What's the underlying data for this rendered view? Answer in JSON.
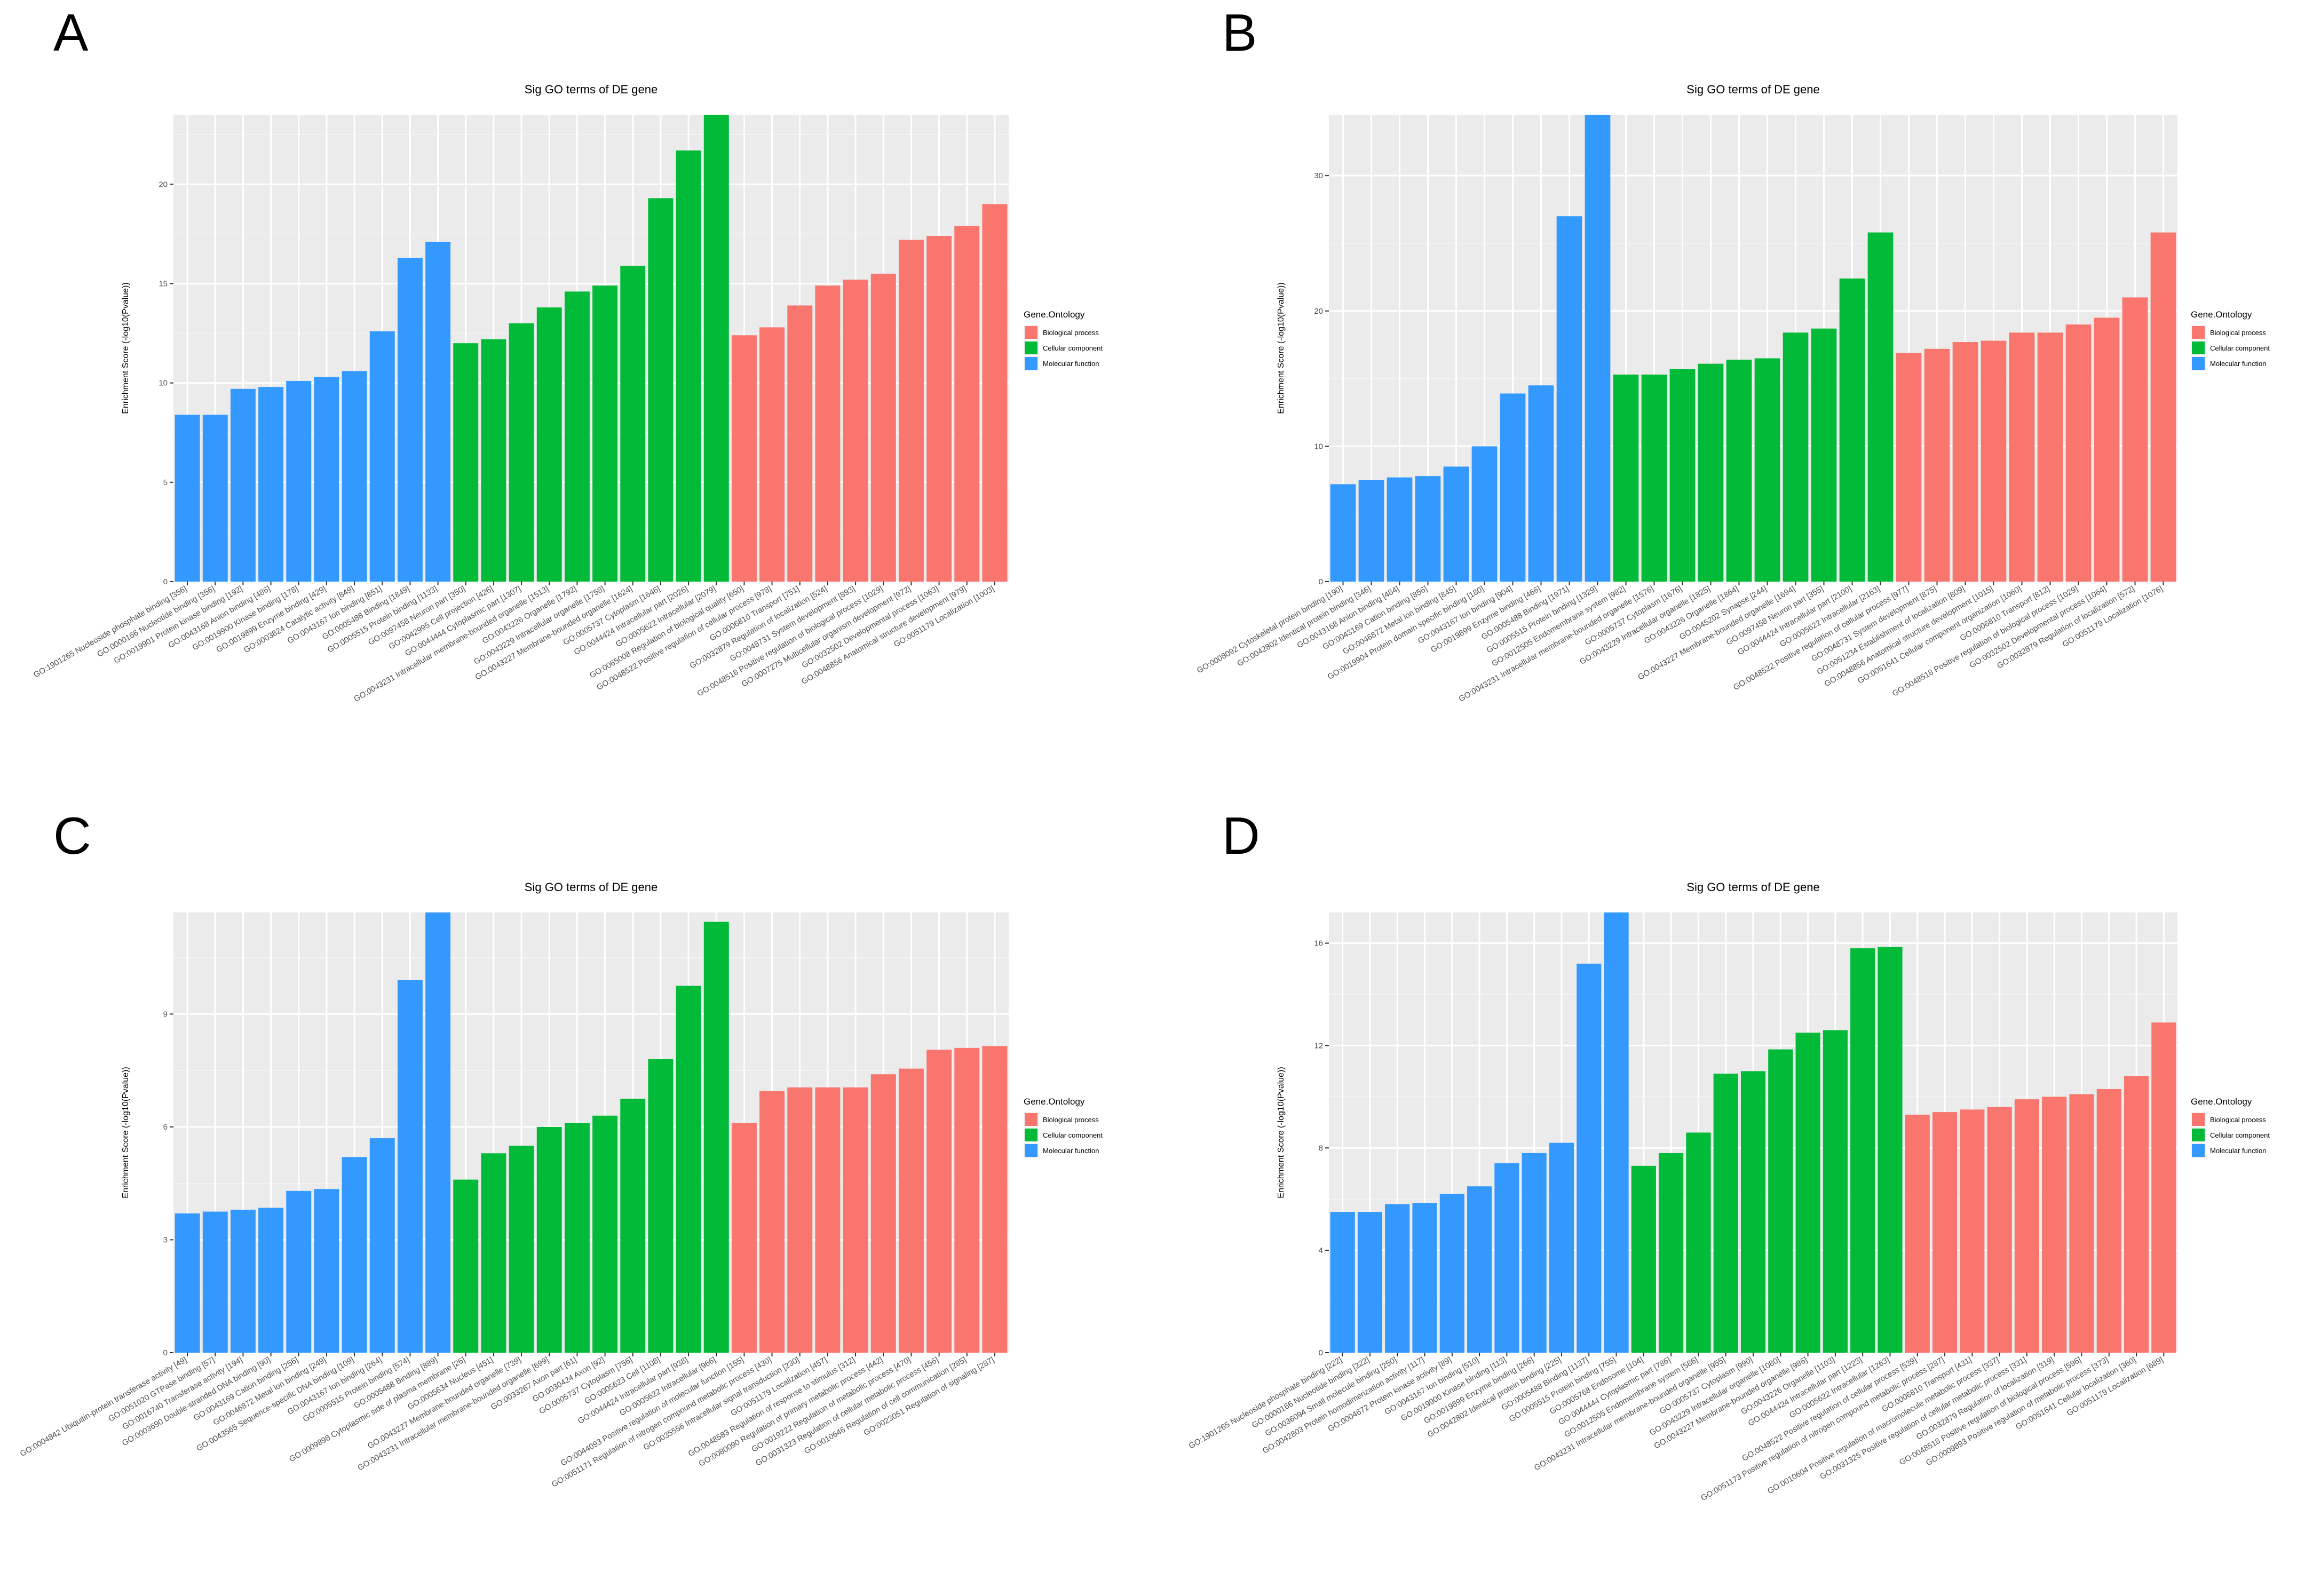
{
  "colors": {
    "biological_process": "#F8766D",
    "cellular_component": "#00BA38",
    "molecular_function": "#3399FF"
  },
  "chart_data": [
    {
      "panel": "A",
      "type": "bar",
      "title": "Sig GO terms of DE gene",
      "ylabel": "Enrichment Score (-log10(Pvalue))",
      "xlabel": "",
      "ylim": [
        0,
        23.5
      ],
      "yticks": [
        0,
        5,
        10,
        15,
        20
      ],
      "legend": {
        "title": "Gene.Ontology",
        "position": "right",
        "entries": [
          "Biological process",
          "Cellular component",
          "Molecular function"
        ]
      },
      "categories": [
        "GO:1901265 Nucleoside phosphate binding [356]",
        "GO:0000166 Nucleotide binding [356]",
        "GO:0019901 Protein kinase binding [192]",
        "GO:0043168 Anion binding [486]",
        "GO:0019900 Kinase binding [178]",
        "GO:0019899 Enzyme binding [429]",
        "GO:0003824 Catalytic activity [849]",
        "GO:0043167 Ion binding [851]",
        "GO:0005488 Binding [1849]",
        "GO:0005515 Protein binding [1133]",
        "GO:0097458 Neuron part [350]",
        "GO:0042995 Cell projection [426]",
        "GO:0044444 Cytoplasmic part [1307]",
        "GO:0043231 Intracellular membrane-bounded organelle [1513]",
        "GO:0043226 Organelle [1792]",
        "GO:0043229 Intracellular organelle [1758]",
        "GO:0043227 Membrane-bounded organelle [1624]",
        "GO:0005737 Cytoplasm [1646]",
        "GO:0044424 Intracellular part [2026]",
        "GO:0005622 Intracellular [2079]",
        "GO:0065008 Regulation of biological quality [650]",
        "GO:0048522 Positive regulation of cellular process [978]",
        "GO:0006810 Transport [751]",
        "GO:0032879 Regulation of localization [524]",
        "GO:0048731 System development [893]",
        "GO:0048518 Positive regulation of biological process [1029]",
        "GO:0007275 Multicellular organism development [972]",
        "GO:0032502 Developmental process [1063]",
        "GO:0048856 Anatomical structure development [979]",
        "GO:0051179 Localization [1003]"
      ],
      "values": [
        8.4,
        8.4,
        9.7,
        9.8,
        10.1,
        10.3,
        10.6,
        12.6,
        16.3,
        17.1,
        12.0,
        12.2,
        13.0,
        13.8,
        14.6,
        14.9,
        15.9,
        19.3,
        21.7,
        23.5,
        12.4,
        12.8,
        13.9,
        14.9,
        15.2,
        15.5,
        17.2,
        17.4,
        17.9,
        19.0
      ],
      "groups": [
        "MF",
        "MF",
        "MF",
        "MF",
        "MF",
        "MF",
        "MF",
        "MF",
        "MF",
        "MF",
        "CC",
        "CC",
        "CC",
        "CC",
        "CC",
        "CC",
        "CC",
        "CC",
        "CC",
        "CC",
        "BP",
        "BP",
        "BP",
        "BP",
        "BP",
        "BP",
        "BP",
        "BP",
        "BP",
        "BP"
      ]
    },
    {
      "panel": "B",
      "type": "bar",
      "title": "Sig GO terms of DE gene",
      "ylabel": "Enrichment Score (-log10(Pvalue))",
      "xlabel": "",
      "ylim": [
        0,
        34.5
      ],
      "yticks": [
        0,
        10,
        20,
        30
      ],
      "legend": {
        "title": "Gene.Ontology",
        "position": "right",
        "entries": [
          "Biological process",
          "Cellular component",
          "Molecular function"
        ]
      },
      "categories": [
        "GO:0008092 Cytoskeletal protein binding [190]",
        "GO:0042802 Identical protein binding [346]",
        "GO:0043168 Anion binding [484]",
        "GO:0043169 Cation binding [856]",
        "GO:0046872 Metal ion binding [845]",
        "GO:0019904 Protein domain specific binding [180]",
        "GO:0043167 Ion binding [904]",
        "GO:0019899 Enzyme binding [466]",
        "GO:0005488 Binding [1971]",
        "GO:0005515 Protein binding [1329]",
        "GO:0012505 Endomembrane system [982]",
        "GO:0043231 Intracellular membrane-bounded organelle [1576]",
        "GO:0005737 Cytoplasm [1676]",
        "GO:0043229 Intracellular organelle [1825]",
        "GO:0043226 Organelle [1864]",
        "GO:0045202 Synapse [244]",
        "GO:0043227 Membrane-bounded organelle [1694]",
        "GO:0097458 Neuron part [355]",
        "GO:0044424 Intracellular part [2100]",
        "GO:0005622 Intracellular [2163]",
        "GO:0048522 Positive regulation of cellular process [977]",
        "GO:0048731 System development [875]",
        "GO:0051234 Establishment of localization [809]",
        "GO:0048856 Anatomical structure development [1015]",
        "GO:0051641 Cellular component organization [1060]",
        "GO:0006810 Transport [812]",
        "GO:0048518 Positive regulation of biological process [1029]",
        "GO:0032502 Developmental process [1064]",
        "GO:0032879 Regulation of localization [572]",
        "GO:0051179 Localization [1076]"
      ],
      "values": [
        7.2,
        7.5,
        7.7,
        7.8,
        8.5,
        10.0,
        13.9,
        14.5,
        27.0,
        34.8,
        15.3,
        15.3,
        15.7,
        16.1,
        16.4,
        16.5,
        18.4,
        18.7,
        22.4,
        25.8,
        16.9,
        17.2,
        17.7,
        17.8,
        18.4,
        18.4,
        19.0,
        19.5,
        21.0,
        25.8
      ],
      "groups": [
        "MF",
        "MF",
        "MF",
        "MF",
        "MF",
        "MF",
        "MF",
        "MF",
        "MF",
        "MF",
        "CC",
        "CC",
        "CC",
        "CC",
        "CC",
        "CC",
        "CC",
        "CC",
        "CC",
        "CC",
        "BP",
        "BP",
        "BP",
        "BP",
        "BP",
        "BP",
        "BP",
        "BP",
        "BP",
        "BP"
      ]
    },
    {
      "panel": "C",
      "type": "bar",
      "title": "Sig GO terms of DE gene",
      "ylabel": "Enrichment Score (-log10(Pvalue))",
      "xlabel": "",
      "ylim": [
        0,
        11.7
      ],
      "yticks": [
        0,
        3,
        6,
        9
      ],
      "legend": {
        "title": "Gene.Ontology",
        "position": "right",
        "entries": [
          "Biological process",
          "Cellular component",
          "Molecular function"
        ]
      },
      "categories": [
        "GO:0004842 Ubiquitin-protein transferase activity [49]",
        "GO:0051020 GTPase binding [57]",
        "GO:0016740 Transferase activity [194]",
        "GO:0003690 Double-stranded DNA binding [90]",
        "GO:0043169 Cation binding [256]",
        "GO:0046872 Metal ion binding [249]",
        "GO:0043565 Sequence-specific DNA binding [109]",
        "GO:0043167 Ion binding [264]",
        "GO:0005515 Protein binding [574]",
        "GO:0005488 Binding [889]",
        "GO:0009898 Cytoplasmic side of plasma membrane [26]",
        "GO:0005634 Nucleus [451]",
        "GO:0043227 Membrane-bounded organelle [739]",
        "GO:0043231 Intracellular membrane-bounded organelle [699]",
        "GO:0033267 Axon part [61]",
        "GO:0030424 Axon [92]",
        "GO:0005737 Cytoplasm [756]",
        "GO:0005623 Cell [1108]",
        "GO:0044424 Intracellular part [938]",
        "GO:0005622 Intracellular [966]",
        "GO:0044093 Positive regulation of molecular function [155]",
        "GO:0051171 Regulation of nitrogen compound metabolic process [430]",
        "GO:0035556 Intracellular signal transduction [230]",
        "GO:0051179 Localization [457]",
        "GO:0048583 Regulation of response to stimulus [312]",
        "GO:0080090 Regulation of primary metabolic process [442]",
        "GO:0019222 Regulation of metabolic process [470]",
        "GO:0031323 Regulation of cellular metabolic process [456]",
        "GO:0010646 Regulation of cell communication [285]",
        "GO:0023051 Regulation of signaling [287]"
      ],
      "values": [
        3.7,
        3.75,
        3.8,
        3.85,
        4.3,
        4.35,
        5.2,
        5.7,
        9.9,
        11.7,
        4.6,
        5.3,
        5.5,
        6.0,
        6.1,
        6.3,
        6.75,
        7.8,
        9.75,
        11.45,
        6.1,
        6.95,
        7.05,
        7.05,
        7.05,
        7.4,
        7.55,
        8.05,
        8.1,
        8.15
      ],
      "groups": [
        "MF",
        "MF",
        "MF",
        "MF",
        "MF",
        "MF",
        "MF",
        "MF",
        "MF",
        "MF",
        "CC",
        "CC",
        "CC",
        "CC",
        "CC",
        "CC",
        "CC",
        "CC",
        "CC",
        "CC",
        "BP",
        "BP",
        "BP",
        "BP",
        "BP",
        "BP",
        "BP",
        "BP",
        "BP",
        "BP"
      ]
    },
    {
      "panel": "D",
      "type": "bar",
      "title": "Sig GO terms of DE gene",
      "ylabel": "Enrichment Score (-log10(Pvalue))",
      "xlabel": "",
      "ylim": [
        0,
        17.2
      ],
      "yticks": [
        0,
        4,
        8,
        12,
        16
      ],
      "legend": {
        "title": "Gene.Ontology",
        "position": "right",
        "entries": [
          "Biological process",
          "Cellular component",
          "Molecular function"
        ]
      },
      "categories": [
        "GO:1901265 Nucleoside phosphate binding [222]",
        "GO:0000166 Nucleotide binding [222]",
        "GO:0036094 Small molecule binding [250]",
        "GO:0042803 Protein homodimerization activity [117]",
        "GO:0004672 Protein kinase activity [89]",
        "GO:0043167 Ion binding [510]",
        "GO:0019900 Kinase binding [113]",
        "GO:0019899 Enzyme binding [266]",
        "GO:0042802 Identical protein binding [225]",
        "GO:0005488 Binding [1137]",
        "GO:0005515 Protein binding [755]",
        "GO:0005768 Endosome [104]",
        "GO:0044444 Cytoplasmic part [786]",
        "GO:0012505 Endomembrane system [586]",
        "GO:0043231 Intracellular membrane-bounded organelle [955]",
        "GO:0005737 Cytoplasm [990]",
        "GO:0043229 Intracellular organelle [1080]",
        "GO:0043227 Membrane-bounded organelle [986]",
        "GO:0043226 Organelle [1103]",
        "GO:0044424 Intracellular part [1223]",
        "GO:0005622 Intracellular [1263]",
        "GO:0048522 Positive regulation of cellular process [539]",
        "GO:0051173 Positive regulation of nitrogen compound metabolic process [287]",
        "GO:0006810 Transport [431]",
        "GO:0010604 Positive regulation of macromolecule metabolic process [337]",
        "GO:0031325 Positive regulation of cellular metabolic process [331]",
        "GO:0032879 Regulation of localization [319]",
        "GO:0048518 Positive regulation of biological process [596]",
        "GO:0009893 Positive regulation of metabolic process [373]",
        "GO:0051641 Cellular localization [360]",
        "GO:0051179 Localization [689]"
      ],
      "values": [
        5.5,
        5.5,
        5.8,
        5.85,
        6.2,
        6.5,
        7.4,
        7.8,
        8.2,
        15.2,
        17.3,
        7.3,
        7.8,
        8.6,
        10.9,
        11.0,
        11.85,
        12.5,
        12.6,
        15.8,
        15.85,
        9.3,
        9.4,
        9.5,
        9.6,
        9.9,
        10.0,
        10.1,
        10.3,
        10.8,
        12.9
      ],
      "groups": [
        "MF",
        "MF",
        "MF",
        "MF",
        "MF",
        "MF",
        "MF",
        "MF",
        "MF",
        "MF",
        "MF",
        "CC",
        "CC",
        "CC",
        "CC",
        "CC",
        "CC",
        "CC",
        "CC",
        "CC",
        "CC",
        "BP",
        "BP",
        "BP",
        "BP",
        "BP",
        "BP",
        "BP",
        "BP",
        "BP",
        "BP"
      ]
    }
  ]
}
